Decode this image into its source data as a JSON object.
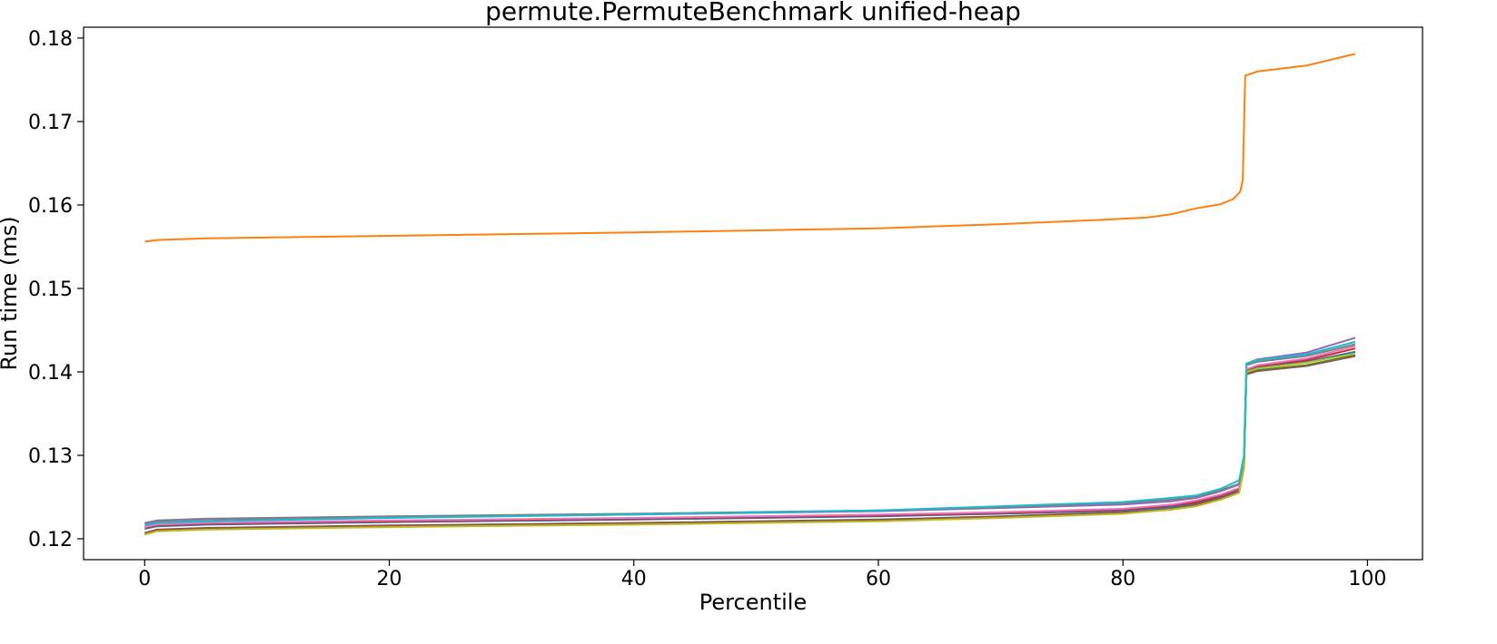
{
  "chart_data": {
    "type": "line",
    "title": "permute.PermuteBenchmark unified-heap",
    "xlabel": "Percentile",
    "ylabel": "Run time (ms)",
    "xlim": [
      -5,
      104.5
    ],
    "ylim": [
      0.1175,
      0.1813
    ],
    "xticks": [
      0,
      20,
      40,
      60,
      80,
      100
    ],
    "xtick_labels": [
      "0",
      "20",
      "40",
      "60",
      "80",
      "100"
    ],
    "yticks": [
      0.12,
      0.13,
      0.14,
      0.15,
      0.16,
      0.17,
      0.18
    ],
    "ytick_labels": [
      "0.12",
      "0.13",
      "0.14",
      "0.15",
      "0.16",
      "0.17",
      "0.18"
    ],
    "grid": false,
    "legend": "none",
    "series": [
      {
        "color": "#1f77b4",
        "points": [
          [
            0,
            0.1212
          ],
          [
            1,
            0.1215
          ],
          [
            5,
            0.1217
          ],
          [
            20,
            0.122
          ],
          [
            40,
            0.1223
          ],
          [
            60,
            0.1227
          ],
          [
            70,
            0.123
          ],
          [
            80,
            0.1234
          ],
          [
            84,
            0.1238
          ],
          [
            86,
            0.1242
          ],
          [
            88,
            0.125
          ],
          [
            89.5,
            0.1258
          ],
          [
            89.9,
            0.129
          ],
          [
            90.1,
            0.14
          ],
          [
            91,
            0.1405
          ],
          [
            95,
            0.1412
          ],
          [
            99,
            0.1424
          ]
        ]
      },
      {
        "color": "#ff7f0e",
        "points": [
          [
            0,
            0.1556
          ],
          [
            1,
            0.1558
          ],
          [
            5,
            0.156
          ],
          [
            20,
            0.1563
          ],
          [
            40,
            0.1567
          ],
          [
            60,
            0.1572
          ],
          [
            70,
            0.1577
          ],
          [
            78,
            0.1582
          ],
          [
            82,
            0.1585
          ],
          [
            84,
            0.1589
          ],
          [
            86,
            0.1596
          ],
          [
            88,
            0.1601
          ],
          [
            89,
            0.1607
          ],
          [
            89.6,
            0.1616
          ],
          [
            89.8,
            0.163
          ],
          [
            90,
            0.1755
          ],
          [
            91,
            0.176
          ],
          [
            95,
            0.1767
          ],
          [
            99,
            0.1781
          ]
        ]
      },
      {
        "color": "#2ca02c",
        "points": [
          [
            0,
            0.1206
          ],
          [
            1,
            0.121
          ],
          [
            5,
            0.1212
          ],
          [
            20,
            0.1215
          ],
          [
            40,
            0.1218
          ],
          [
            60,
            0.1222
          ],
          [
            70,
            0.1226
          ],
          [
            80,
            0.1231
          ],
          [
            84,
            0.1235
          ],
          [
            86,
            0.124
          ],
          [
            88,
            0.1248
          ],
          [
            89.5,
            0.1256
          ],
          [
            89.9,
            0.1285
          ],
          [
            90.1,
            0.1398
          ],
          [
            91,
            0.1402
          ],
          [
            95,
            0.1408
          ],
          [
            99,
            0.142
          ]
        ]
      },
      {
        "color": "#d62728",
        "points": [
          [
            0,
            0.1213
          ],
          [
            1,
            0.1216
          ],
          [
            5,
            0.1218
          ],
          [
            20,
            0.1221
          ],
          [
            40,
            0.1224
          ],
          [
            60,
            0.1228
          ],
          [
            70,
            0.1231
          ],
          [
            80,
            0.1235
          ],
          [
            84,
            0.124
          ],
          [
            86,
            0.1244
          ],
          [
            88,
            0.1252
          ],
          [
            89.5,
            0.126
          ],
          [
            89.9,
            0.129
          ],
          [
            90.1,
            0.1402
          ],
          [
            91,
            0.1407
          ],
          [
            95,
            0.1414
          ],
          [
            99,
            0.1428
          ]
        ]
      },
      {
        "color": "#9467bd",
        "points": [
          [
            0,
            0.1218
          ],
          [
            1,
            0.1221
          ],
          [
            5,
            0.1223
          ],
          [
            20,
            0.1226
          ],
          [
            40,
            0.1229
          ],
          [
            60,
            0.1233
          ],
          [
            70,
            0.1237
          ],
          [
            80,
            0.1241
          ],
          [
            84,
            0.1245
          ],
          [
            86,
            0.1249
          ],
          [
            88,
            0.1257
          ],
          [
            89.5,
            0.1265
          ],
          [
            89.9,
            0.1295
          ],
          [
            90.1,
            0.141
          ],
          [
            91,
            0.1415
          ],
          [
            95,
            0.1423
          ],
          [
            99,
            0.1441
          ]
        ]
      },
      {
        "color": "#8c564b",
        "points": [
          [
            0,
            0.1207
          ],
          [
            1,
            0.1211
          ],
          [
            5,
            0.1213
          ],
          [
            20,
            0.1216
          ],
          [
            40,
            0.1219
          ],
          [
            60,
            0.1223
          ],
          [
            70,
            0.1227
          ],
          [
            80,
            0.1232
          ],
          [
            84,
            0.1236
          ],
          [
            86,
            0.1241
          ],
          [
            88,
            0.1249
          ],
          [
            89.5,
            0.1257
          ],
          [
            89.9,
            0.1287
          ],
          [
            90.1,
            0.1397
          ],
          [
            91,
            0.1401
          ],
          [
            95,
            0.1407
          ],
          [
            99,
            0.1419
          ]
        ]
      },
      {
        "color": "#e377c2",
        "points": [
          [
            0,
            0.1214
          ],
          [
            1,
            0.1217
          ],
          [
            5,
            0.1219
          ],
          [
            20,
            0.1222
          ],
          [
            40,
            0.1225
          ],
          [
            60,
            0.1229
          ],
          [
            70,
            0.1232
          ],
          [
            80,
            0.1236
          ],
          [
            84,
            0.1241
          ],
          [
            86,
            0.1246
          ],
          [
            88,
            0.1253
          ],
          [
            89.5,
            0.1261
          ],
          [
            89.9,
            0.1291
          ],
          [
            90.1,
            0.1403
          ],
          [
            91,
            0.1408
          ],
          [
            95,
            0.1416
          ],
          [
            99,
            0.1431
          ]
        ]
      },
      {
        "color": "#7f7f7f",
        "points": [
          [
            0,
            0.1219
          ],
          [
            1,
            0.1222
          ],
          [
            5,
            0.1224
          ],
          [
            20,
            0.1227
          ],
          [
            40,
            0.123
          ],
          [
            60,
            0.1234
          ],
          [
            70,
            0.1238
          ],
          [
            80,
            0.1243
          ],
          [
            84,
            0.1247
          ],
          [
            86,
            0.125
          ],
          [
            88,
            0.1258
          ],
          [
            89.5,
            0.1266
          ],
          [
            89.9,
            0.1296
          ],
          [
            90.1,
            0.1408
          ],
          [
            91,
            0.1412
          ],
          [
            95,
            0.1419
          ],
          [
            99,
            0.1433
          ]
        ]
      },
      {
        "color": "#bcbd22",
        "points": [
          [
            0,
            0.1205
          ],
          [
            1,
            0.1209
          ],
          [
            5,
            0.1211
          ],
          [
            20,
            0.1214
          ],
          [
            40,
            0.1217
          ],
          [
            60,
            0.1221
          ],
          [
            70,
            0.1225
          ],
          [
            80,
            0.123
          ],
          [
            84,
            0.1235
          ],
          [
            86,
            0.1239
          ],
          [
            88,
            0.1247
          ],
          [
            89.5,
            0.1255
          ],
          [
            89.9,
            0.1284
          ],
          [
            90.1,
            0.14
          ],
          [
            91,
            0.1404
          ],
          [
            95,
            0.1411
          ],
          [
            99,
            0.1422
          ]
        ]
      },
      {
        "color": "#17becf",
        "points": [
          [
            0,
            0.1216
          ],
          [
            1,
            0.1219
          ],
          [
            5,
            0.1221
          ],
          [
            20,
            0.1225
          ],
          [
            40,
            0.1229
          ],
          [
            60,
            0.1234
          ],
          [
            70,
            0.1239
          ],
          [
            80,
            0.1244
          ],
          [
            84,
            0.1249
          ],
          [
            86,
            0.1252
          ],
          [
            88,
            0.126
          ],
          [
            89.5,
            0.127
          ],
          [
            89.9,
            0.13
          ],
          [
            90.1,
            0.141
          ],
          [
            91,
            0.1414
          ],
          [
            95,
            0.1421
          ],
          [
            99,
            0.1436
          ]
        ]
      }
    ]
  }
}
